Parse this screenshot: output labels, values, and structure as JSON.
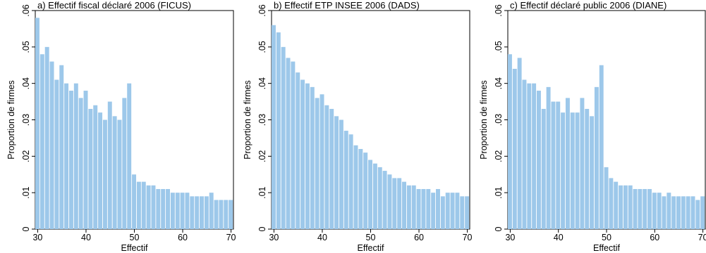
{
  "chart_data": [
    {
      "type": "bar",
      "title": "a) Effectif fiscal déclaré 2006 (FICUS)",
      "xlabel": "Effectif",
      "ylabel": "Proportion de firmes",
      "x_ticks": [
        "30",
        "40",
        "50",
        "60",
        "70"
      ],
      "y_ticks": [
        "0",
        ".01",
        ".02",
        ".03",
        ".04",
        ".05",
        ".06"
      ],
      "xlim": [
        29.5,
        70.5
      ],
      "ylim": [
        0,
        0.06
      ],
      "bar_color": "#9dc8ea",
      "x": [
        30,
        31,
        32,
        33,
        34,
        35,
        36,
        37,
        38,
        39,
        40,
        41,
        42,
        43,
        44,
        45,
        46,
        47,
        48,
        49,
        50,
        51,
        52,
        53,
        54,
        55,
        56,
        57,
        58,
        59,
        60,
        61,
        62,
        63,
        64,
        65,
        66,
        67,
        68,
        69,
        70
      ],
      "values": [
        0.058,
        0.048,
        0.05,
        0.046,
        0.041,
        0.045,
        0.04,
        0.038,
        0.04,
        0.036,
        0.038,
        0.033,
        0.034,
        0.032,
        0.03,
        0.035,
        0.031,
        0.03,
        0.036,
        0.04,
        0.015,
        0.013,
        0.013,
        0.012,
        0.012,
        0.011,
        0.011,
        0.011,
        0.01,
        0.01,
        0.01,
        0.01,
        0.009,
        0.009,
        0.009,
        0.009,
        0.01,
        0.008,
        0.008,
        0.008,
        0.008
      ]
    },
    {
      "type": "bar",
      "title": "b) Effectif ETP INSEE 2006 (DADS)",
      "xlabel": "Effectif",
      "ylabel": "Proportion de firmes",
      "x_ticks": [
        "30",
        "40",
        "50",
        "60",
        "70"
      ],
      "y_ticks": [
        "0",
        ".01",
        ".02",
        ".03",
        ".04",
        ".05",
        ".06"
      ],
      "xlim": [
        29.5,
        70.5
      ],
      "ylim": [
        0,
        0.06
      ],
      "bar_color": "#9dc8ea",
      "x": [
        30,
        31,
        32,
        33,
        34,
        35,
        36,
        37,
        38,
        39,
        40,
        41,
        42,
        43,
        44,
        45,
        46,
        47,
        48,
        49,
        50,
        51,
        52,
        53,
        54,
        55,
        56,
        57,
        58,
        59,
        60,
        61,
        62,
        63,
        64,
        65,
        66,
        67,
        68,
        69,
        70
      ],
      "values": [
        0.056,
        0.054,
        0.05,
        0.047,
        0.046,
        0.043,
        0.041,
        0.04,
        0.039,
        0.036,
        0.037,
        0.034,
        0.033,
        0.031,
        0.03,
        0.027,
        0.026,
        0.023,
        0.022,
        0.021,
        0.019,
        0.018,
        0.017,
        0.016,
        0.015,
        0.014,
        0.014,
        0.013,
        0.012,
        0.012,
        0.011,
        0.011,
        0.011,
        0.01,
        0.011,
        0.009,
        0.01,
        0.01,
        0.01,
        0.009,
        0.009
      ]
    },
    {
      "type": "bar",
      "title": "c) Effectif déclaré public 2006 (DIANE)",
      "xlabel": "Effectif",
      "ylabel": "Proportion de firmes",
      "x_ticks": [
        "30",
        "40",
        "50",
        "60",
        "70"
      ],
      "y_ticks": [
        "0",
        ".01",
        ".02",
        ".03",
        ".04",
        ".05",
        ".06"
      ],
      "xlim": [
        29.5,
        70.5
      ],
      "ylim": [
        0,
        0.06
      ],
      "bar_color": "#9dc8ea",
      "x": [
        30,
        31,
        32,
        33,
        34,
        35,
        36,
        37,
        38,
        39,
        40,
        41,
        42,
        43,
        44,
        45,
        46,
        47,
        48,
        49,
        50,
        51,
        52,
        53,
        54,
        55,
        56,
        57,
        58,
        59,
        60,
        61,
        62,
        63,
        64,
        65,
        66,
        67,
        68,
        69,
        70
      ],
      "values": [
        0.048,
        0.044,
        0.047,
        0.041,
        0.04,
        0.04,
        0.038,
        0.033,
        0.039,
        0.035,
        0.035,
        0.032,
        0.036,
        0.032,
        0.032,
        0.036,
        0.033,
        0.031,
        0.039,
        0.045,
        0.017,
        0.014,
        0.013,
        0.012,
        0.012,
        0.012,
        0.011,
        0.011,
        0.011,
        0.011,
        0.01,
        0.01,
        0.009,
        0.01,
        0.009,
        0.009,
        0.009,
        0.009,
        0.009,
        0.008,
        0.009
      ]
    }
  ]
}
